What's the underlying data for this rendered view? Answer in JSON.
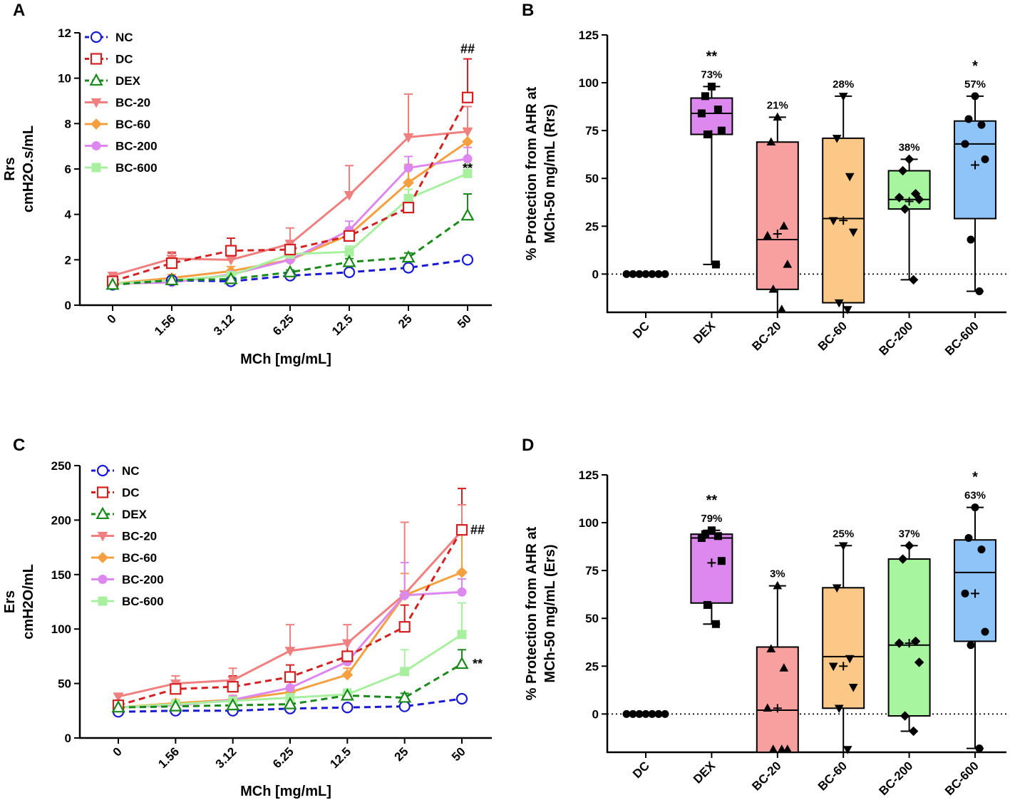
{
  "chart_data": [
    {
      "panel": "A",
      "type": "line",
      "xlabel": "MCh [mg/mL]",
      "ylabel_lines": [
        "Rrs",
        "cmH2O.s/mL"
      ],
      "ylabel_sub": "2",
      "categories": [
        "0",
        "1.56",
        "3.12",
        "6.25",
        "12.5",
        "25",
        "50"
      ],
      "ylim": [
        0,
        12
      ],
      "yticks": [
        "0",
        "2",
        "4",
        "6",
        "8",
        "10",
        "12"
      ],
      "series": [
        {
          "name": "NC",
          "color": "#1a1ad4",
          "marker": "circle-open",
          "dash": true,
          "values": [
            0.9,
            1.1,
            1.05,
            1.3,
            1.45,
            1.65,
            2.0
          ],
          "err": [
            0.05,
            0.05,
            0.05,
            0.1,
            0.1,
            0.1,
            0.15
          ]
        },
        {
          "name": "DC",
          "color": "#d42020",
          "marker": "square-open",
          "dash": true,
          "values": [
            1.05,
            1.85,
            2.4,
            2.45,
            3.05,
            4.3,
            9.15
          ],
          "err": [
            0.1,
            0.45,
            0.55,
            0.4,
            0.3,
            0.4,
            1.7
          ]
        },
        {
          "name": "DEX",
          "color": "#1a8a1a",
          "marker": "triangle-open",
          "dash": true,
          "values": [
            0.9,
            1.1,
            1.15,
            1.45,
            1.9,
            2.1,
            3.95
          ],
          "err": [
            0.05,
            0.1,
            0.1,
            0.1,
            0.15,
            0.2,
            0.95
          ]
        },
        {
          "name": "BC-20",
          "color": "#f08080",
          "marker": "triangle-down",
          "dash": false,
          "values": [
            1.3,
            2.05,
            2.0,
            2.7,
            4.85,
            7.4,
            7.65
          ],
          "err": [
            0.1,
            0.3,
            0.35,
            0.7,
            1.3,
            1.9,
            1.1
          ]
        },
        {
          "name": "BC-60",
          "color": "#f5a040",
          "marker": "diamond",
          "dash": false,
          "values": [
            0.95,
            1.2,
            1.5,
            2.0,
            3.1,
            5.4,
            7.2
          ],
          "err": [
            0.05,
            0.15,
            0.2,
            0.25,
            0.3,
            0.8,
            0.6
          ]
        },
        {
          "name": "BC-200",
          "color": "#dd88ee",
          "marker": "circle",
          "dash": false,
          "values": [
            0.95,
            1.0,
            1.35,
            2.0,
            3.3,
            6.05,
            6.45
          ],
          "err": [
            0.05,
            0.1,
            0.15,
            0.2,
            0.4,
            0.5,
            0.5
          ]
        },
        {
          "name": "BC-600",
          "color": "#a8f0a0",
          "marker": "square",
          "dash": false,
          "values": [
            0.95,
            1.1,
            1.3,
            2.25,
            2.35,
            4.7,
            5.8
          ],
          "err": [
            0.05,
            0.1,
            0.15,
            0.2,
            0.25,
            0.4,
            0.4
          ]
        }
      ],
      "annotations": [
        {
          "text": "##",
          "series": "DC",
          "index": 6
        },
        {
          "text": "**",
          "series": "DEX",
          "index": 6
        }
      ]
    },
    {
      "panel": "B",
      "type": "box",
      "ylabel_lines": [
        "% Protection from AHR at",
        "MCh-50 mg/mL (Rrs)"
      ],
      "ylim": [
        -20,
        125
      ],
      "yticks": [
        "0",
        "25",
        "50",
        "75",
        "100",
        "125"
      ],
      "groups": [
        {
          "name": "DC",
          "color": "#ffffff",
          "marker": "circle",
          "min": 0,
          "q1": 0,
          "median": 0,
          "q3": 0,
          "max": 0,
          "mean": 0,
          "points": [
            0,
            0,
            0,
            0,
            0,
            0,
            0
          ],
          "pct": "",
          "sig": ""
        },
        {
          "name": "DEX",
          "color": "#dd88ee",
          "marker": "square",
          "min": 5,
          "q1": 73,
          "median": 84,
          "q3": 92,
          "max": 98,
          "mean": 73,
          "points": [
            98,
            93,
            86,
            84,
            75,
            73,
            5
          ],
          "pct": "73%",
          "sig": "**"
        },
        {
          "name": "BC-20",
          "color": "#f8a0a0",
          "marker": "triangle",
          "min": -20,
          "q1": -8,
          "median": 18,
          "q3": 69,
          "max": 82,
          "mean": 21,
          "points": [
            82,
            69,
            25,
            20,
            5,
            -8,
            -20
          ],
          "pct": "21%",
          "sig": ""
        },
        {
          "name": "BC-60",
          "color": "#fcc888",
          "marker": "triangle-down",
          "min": -20,
          "q1": -15,
          "median": 29,
          "q3": 71,
          "max": 93,
          "mean": 28,
          "points": [
            93,
            71,
            51,
            28,
            22,
            -15,
            -20
          ],
          "pct": "28%",
          "sig": ""
        },
        {
          "name": "BC-200",
          "color": "#a8f5a0",
          "marker": "diamond",
          "min": -3,
          "q1": 34,
          "median": 39,
          "q3": 54,
          "max": 60,
          "mean": 38,
          "points": [
            60,
            54,
            42,
            40,
            39,
            34,
            -3
          ],
          "pct": "38%",
          "sig": ""
        },
        {
          "name": "BC-600",
          "color": "#8ec4f8",
          "marker": "circle",
          "min": -9,
          "q1": 29,
          "median": 68,
          "q3": 80,
          "max": 93,
          "mean": 57,
          "points": [
            93,
            81,
            78,
            68,
            60,
            18,
            -9
          ],
          "pct": "57%",
          "sig": "*"
        }
      ]
    },
    {
      "panel": "C",
      "type": "line",
      "xlabel": "MCh [mg/mL]",
      "ylabel_lines": [
        "Ers",
        "cmH2O/mL"
      ],
      "ylabel_sub": "2",
      "categories": [
        "0",
        "1.56",
        "3.12",
        "6.25",
        "12.5",
        "25",
        "50"
      ],
      "ylim": [
        0,
        250
      ],
      "yticks": [
        "0",
        "50",
        "100",
        "150",
        "200",
        "250"
      ],
      "series": [
        {
          "name": "NC",
          "color": "#1a1ad4",
          "marker": "circle-open",
          "dash": true,
          "values": [
            24,
            25,
            25,
            27,
            28,
            29,
            36
          ],
          "err": [
            1,
            1,
            1,
            2,
            2,
            2,
            3
          ]
        },
        {
          "name": "DC",
          "color": "#d42020",
          "marker": "square-open",
          "dash": true,
          "values": [
            30,
            45,
            47,
            56,
            75,
            102,
            191
          ],
          "err": [
            3,
            8,
            10,
            11,
            14,
            20,
            38
          ]
        },
        {
          "name": "DEX",
          "color": "#1a8a1a",
          "marker": "triangle-open",
          "dash": true,
          "values": [
            28,
            29,
            30,
            31,
            39,
            37,
            68
          ],
          "err": [
            1,
            2,
            2,
            3,
            4,
            4,
            13
          ]
        },
        {
          "name": "BC-20",
          "color": "#f08080",
          "marker": "triangle-down",
          "dash": false,
          "values": [
            38,
            50,
            53,
            80,
            87,
            132,
            190
          ],
          "err": [
            3,
            7,
            11,
            24,
            17,
            66,
            24
          ]
        },
        {
          "name": "BC-60",
          "color": "#f5a040",
          "marker": "diamond",
          "dash": false,
          "values": [
            28,
            32,
            35,
            42,
            58,
            131,
            152
          ],
          "err": [
            2,
            3,
            4,
            5,
            6,
            20,
            38
          ]
        },
        {
          "name": "BC-200",
          "color": "#dd88ee",
          "marker": "circle",
          "dash": false,
          "values": [
            28,
            30,
            35,
            46,
            70,
            131,
            134
          ],
          "err": [
            2,
            3,
            4,
            6,
            8,
            30,
            12
          ]
        },
        {
          "name": "BC-600",
          "color": "#a8f0a0",
          "marker": "square",
          "dash": false,
          "values": [
            28,
            31,
            34,
            37,
            40,
            61,
            95
          ],
          "err": [
            2,
            3,
            3,
            4,
            5,
            20,
            29
          ]
        }
      ],
      "annotations": [
        {
          "text": "##",
          "series": "DC",
          "index": 6
        },
        {
          "text": "**",
          "series": "DEX",
          "index": 6
        }
      ]
    },
    {
      "panel": "D",
      "type": "box",
      "ylabel_lines": [
        "% Protection from AHR at",
        "MCh-50 mg/mL (Ers)"
      ],
      "ylim": [
        -20,
        125
      ],
      "yticks": [
        "0",
        "25",
        "50",
        "75",
        "100",
        "125"
      ],
      "groups": [
        {
          "name": "DC",
          "color": "#ffffff",
          "marker": "circle",
          "min": 0,
          "q1": 0,
          "median": 0,
          "q3": 0,
          "max": 0,
          "mean": 0,
          "points": [
            0,
            0,
            0,
            0,
            0,
            0,
            0
          ],
          "pct": "",
          "sig": ""
        },
        {
          "name": "DEX",
          "color": "#dd88ee",
          "marker": "square",
          "min": 47,
          "q1": 58,
          "median": 92,
          "q3": 94,
          "max": 96,
          "mean": 79,
          "points": [
            96,
            94,
            93,
            92,
            80,
            57,
            47
          ],
          "pct": "79%",
          "sig": "**"
        },
        {
          "name": "BC-20",
          "color": "#f8a0a0",
          "marker": "triangle",
          "min": -20,
          "q1": -20,
          "median": 2,
          "q3": 35,
          "max": 67,
          "mean": 3,
          "points": [
            67,
            34,
            24,
            3,
            -20,
            -20,
            -20
          ],
          "pct": "3%",
          "sig": ""
        },
        {
          "name": "BC-60",
          "color": "#fcc888",
          "marker": "triangle-down",
          "min": -20,
          "q1": 3,
          "median": 30,
          "q3": 66,
          "max": 88,
          "mean": 25,
          "points": [
            88,
            66,
            29,
            25,
            14,
            3,
            -20
          ],
          "pct": "25%",
          "sig": ""
        },
        {
          "name": "BC-200",
          "color": "#a8f5a0",
          "marker": "diamond",
          "min": -9,
          "q1": -1,
          "median": 36,
          "q3": 81,
          "max": 88,
          "mean": 37,
          "points": [
            88,
            81,
            38,
            37,
            27,
            -1,
            -9
          ],
          "pct": "37%",
          "sig": ""
        },
        {
          "name": "BC-600",
          "color": "#8ec4f8",
          "marker": "circle",
          "min": -18,
          "q1": 38,
          "median": 74,
          "q3": 91,
          "max": 108,
          "mean": 63,
          "points": [
            108,
            92,
            86,
            63,
            43,
            36,
            -18
          ],
          "pct": "63%",
          "sig": "*"
        }
      ]
    }
  ]
}
